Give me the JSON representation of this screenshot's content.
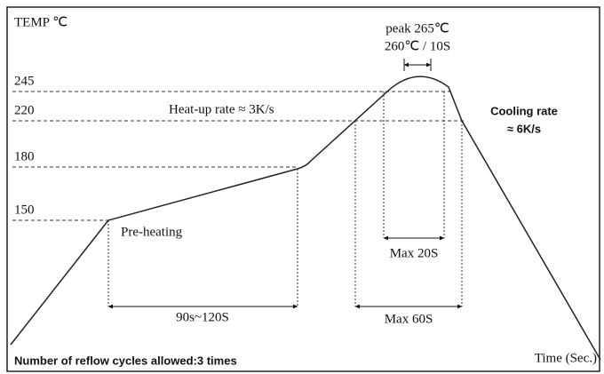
{
  "axis": {
    "y_label": "TEMP ℃",
    "x_label": "Time (Sec.)",
    "y_levels": [
      "245",
      "220",
      "180",
      "150"
    ]
  },
  "peak": {
    "label": "peak 265℃",
    "sub": "260℃ / 10S"
  },
  "heat_up": "Heat-up rate ≈ 3K/s",
  "cooling": {
    "line1": "Cooling rate",
    "line2": "≈ 6K/s"
  },
  "pre_heating": "Pre-heating",
  "durations": {
    "max20": "Max 20S",
    "preheat": "90s~120S",
    "max60": "Max 60S"
  },
  "footer": "Number of reflow cycles allowed:3 times"
}
